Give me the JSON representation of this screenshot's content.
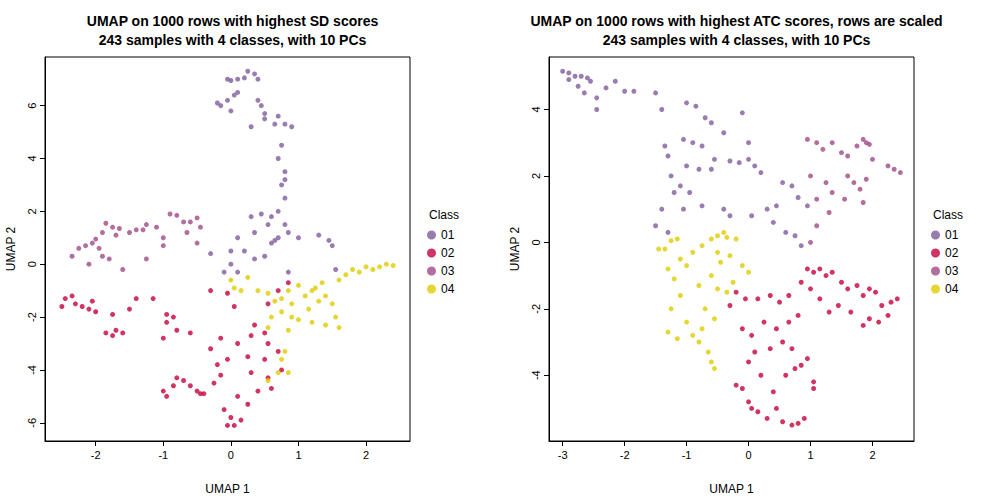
{
  "chart_data": [
    {
      "type": "scatter",
      "title": "UMAP on 1000 rows with highest SD scores",
      "subtitle": "243 samples with 4 classes, with 10 PCs",
      "x_label": "UMAP 1",
      "y_label": "UMAP 2",
      "legend_title": "Class",
      "legend": "right",
      "grid": false,
      "xlim": [
        -2.75,
        2.65
      ],
      "ylim": [
        -6.69,
        7.84
      ],
      "xticks": [
        -2,
        -1,
        0,
        1,
        2
      ],
      "yticks": [
        -6,
        -4,
        -2,
        0,
        2,
        4,
        6
      ],
      "series": [
        {
          "name": "01",
          "color": "#7F5C9E",
          "x": [
            -0.05,
            0.0,
            0.1,
            0.2,
            0.25,
            0.35,
            0.4,
            0.1,
            0.05,
            -0.05,
            -0.15,
            -0.2,
            0.0,
            0.4,
            0.45,
            0.5,
            0.3,
            0.5,
            0.65,
            0.7,
            0.8,
            0.9,
            0.75,
            0.7,
            0.8,
            0.8,
            0.75,
            0.8,
            0.7,
            0.6,
            0.45,
            0.3,
            0.55,
            0.35,
            0.8,
            0.7,
            0.85,
            0.6,
            1.0,
            1.3,
            1.45,
            1.5,
            0.1,
            0.2,
            -0.3,
            0.0,
            0.1,
            0.0,
            -0.1,
            0.35,
            0.5,
            0.65,
            1.55,
            0.85
          ],
          "values": [
            7.0,
            6.95,
            7.0,
            7.05,
            7.3,
            7.2,
            7.0,
            6.5,
            6.4,
            6.2,
            6.0,
            6.1,
            5.8,
            6.2,
            6.0,
            5.7,
            5.2,
            5.5,
            5.3,
            5.6,
            5.3,
            5.2,
            4.5,
            4.0,
            3.5,
            3.2,
            3.0,
            2.5,
            2.0,
            1.8,
            1.9,
            1.8,
            1.5,
            1.2,
            1.5,
            1.0,
            1.2,
            0.8,
            1.0,
            1.1,
            0.9,
            0.7,
            1.0,
            0.5,
            0.4,
            0.5,
            -0.3,
            0.0,
            -0.3,
            0.2,
            0.3,
            0.9,
            -0.2,
            -0.3
          ]
        },
        {
          "name": "02",
          "color": "#C5003B",
          "x": [
            -2.5,
            -2.45,
            -2.35,
            -2.3,
            -2.2,
            -2.1,
            -2.05,
            -2.0,
            -1.85,
            -1.75,
            -1.7,
            -1.6,
            -1.75,
            -1.5,
            -1.4,
            -1.15,
            -0.95,
            -0.85,
            -0.95,
            -0.8,
            -0.6,
            -1.0,
            -1.0,
            -0.95,
            -0.85,
            -0.8,
            -0.7,
            -0.6,
            -0.5,
            -0.4,
            -0.25,
            -0.15,
            -0.2,
            -0.05,
            -0.3,
            -0.15,
            0.1,
            0.25,
            -0.05,
            0.05,
            -0.3,
            0.35,
            0.5,
            0.55,
            0.7,
            0.5,
            0.3,
            0.1,
            -0.1,
            0.0,
            -0.05,
            0.05,
            0.15,
            0.25,
            0.4,
            0.55,
            0.6,
            0.75,
            0.55,
            0.7,
            0.85,
            -0.45,
            0.3
          ],
          "values": [
            -1.6,
            -1.3,
            -1.2,
            -1.5,
            -1.6,
            -1.7,
            -1.4,
            -1.8,
            -2.6,
            -2.7,
            -2.5,
            -2.6,
            -1.9,
            -1.7,
            -1.3,
            -1.3,
            -1.9,
            -2.0,
            -2.2,
            -2.5,
            -2.6,
            -2.8,
            -4.8,
            -5.0,
            -4.6,
            -4.3,
            -4.4,
            -4.6,
            -4.8,
            -4.9,
            -4.5,
            -4.2,
            -3.8,
            -3.6,
            -3.2,
            -2.8,
            -3.0,
            -3.5,
            -1.1,
            -1.6,
            -1.0,
            -2.3,
            -2.6,
            -3.0,
            -3.3,
            -3.6,
            -4.1,
            -5.0,
            -5.5,
            -5.8,
            -6.1,
            -6.1,
            -5.9,
            -5.3,
            -4.8,
            -4.3,
            -4.7,
            -4.0,
            -1.5,
            -1.0,
            -0.7,
            -4.9,
            -2.7
          ]
        },
        {
          "name": "03",
          "color": "#9F4A87",
          "x": [
            -2.35,
            -2.25,
            -2.15,
            -2.05,
            -2.0,
            -1.9,
            -1.85,
            -1.75,
            -1.65,
            -1.7,
            -1.5,
            -1.4,
            -1.3,
            -1.25,
            -1.1,
            -1.0,
            -0.9,
            -0.8,
            -0.7,
            -0.6,
            -0.5,
            -0.65,
            -0.5,
            -1.25,
            -1.9,
            -1.8,
            -1.6,
            -1.0,
            -2.1,
            -1.95,
            -0.45
          ],
          "values": [
            0.3,
            0.6,
            0.7,
            0.8,
            0.95,
            1.2,
            1.55,
            1.4,
            1.35,
            1.1,
            1.2,
            1.3,
            1.3,
            1.5,
            1.4,
            1.0,
            1.9,
            1.85,
            1.6,
            1.6,
            1.75,
            1.2,
            0.8,
            0.2,
            0.3,
            0.2,
            -0.2,
            0.7,
            0.0,
            0.6,
            1.4
          ]
        },
        {
          "name": "04",
          "color": "#DDCC00",
          "x": [
            0.0,
            0.05,
            0.15,
            0.25,
            0.4,
            0.55,
            0.65,
            0.75,
            0.85,
            0.9,
            1.0,
            1.1,
            1.15,
            1.25,
            1.3,
            1.4,
            1.5,
            1.55,
            1.6,
            1.7,
            1.8,
            1.9,
            2.0,
            2.1,
            2.2,
            2.3,
            2.4,
            1.2,
            1.4,
            1.6,
            1.0,
            0.85,
            0.9,
            0.75,
            0.6,
            0.55,
            0.8,
            0.75,
            0.7,
            0.85,
            0.55,
            1.2,
            1.35
          ],
          "values": [
            -0.6,
            -0.9,
            -1.0,
            -0.5,
            -1.0,
            -1.1,
            -1.4,
            -1.3,
            -1.0,
            -1.5,
            -0.8,
            -1.2,
            -1.7,
            -0.9,
            -1.4,
            -1.2,
            -1.5,
            -2.0,
            -0.6,
            -0.4,
            -0.2,
            -0.3,
            -0.1,
            -0.2,
            -0.1,
            0.0,
            -0.05,
            -2.2,
            -2.3,
            -2.4,
            -2.1,
            -2.5,
            -2.0,
            -1.8,
            -2.0,
            -2.4,
            -3.3,
            -3.6,
            -4.1,
            -4.1,
            -4.4,
            -1.0,
            -0.7
          ]
        }
      ]
    },
    {
      "type": "scatter",
      "title": "UMAP on 1000 rows with highest ATC scores, rows are scaled",
      "subtitle": "243 samples with 4 classes, with 10 PCs",
      "x_label": "UMAP 1",
      "y_label": "UMAP 2",
      "legend_title": "Class",
      "legend": "right",
      "grid": false,
      "xlim": [
        -3.22,
        2.67
      ],
      "ylim": [
        -5.98,
        5.58
      ],
      "xticks": [
        -3,
        -2,
        -1,
        0,
        1,
        2
      ],
      "yticks": [
        -4,
        -2,
        0,
        2,
        4
      ],
      "series": [
        {
          "name": "01",
          "color": "#7F5C9E",
          "x": [
            -3.0,
            -2.9,
            -2.8,
            -2.7,
            -2.6,
            -2.55,
            -2.9,
            -2.75,
            -2.65,
            -2.45,
            -2.45,
            -2.3,
            -2.15,
            -2.0,
            -1.85,
            -1.5,
            -1.4,
            -1.0,
            -0.85,
            -0.7,
            -0.6,
            -0.4,
            -1.35,
            -1.3,
            -1.05,
            -0.9,
            -0.75,
            -1.25,
            -1.2,
            -1.1,
            -0.95,
            -1.0,
            -0.8,
            -0.6,
            -0.55,
            -0.3,
            -0.15,
            0.0,
            0.1,
            -0.1,
            0.0,
            0.2,
            -1.4,
            -1.5,
            -1.3,
            -1.05,
            -0.75,
            -0.4,
            -0.3,
            0.05,
            0.3,
            0.4,
            0.45,
            0.55,
            0.7,
            0.8,
            0.95,
            0.6,
            0.75,
            0.85
          ],
          "values": [
            5.15,
            5.1,
            5.0,
            5.0,
            4.95,
            4.85,
            4.9,
            4.7,
            4.5,
            4.35,
            4.0,
            4.65,
            4.85,
            4.55,
            4.55,
            4.5,
            4.0,
            4.2,
            4.1,
            3.75,
            3.6,
            3.3,
            2.9,
            2.6,
            3.1,
            3.0,
            2.9,
            2.0,
            1.5,
            1.7,
            1.5,
            2.3,
            2.2,
            2.2,
            2.5,
            2.45,
            2.4,
            2.5,
            2.3,
            3.9,
            3.0,
            2.1,
            1.0,
            0.5,
            0.3,
            1.0,
            1.1,
            1.0,
            0.8,
            0.8,
            1.0,
            0.6,
            1.1,
            1.8,
            1.7,
            1.35,
            1.1,
            0.3,
            0.2,
            -0.1
          ]
        },
        {
          "name": "02",
          "color": "#C5003B",
          "x": [
            0.95,
            1.05,
            1.15,
            1.25,
            1.35,
            1.5,
            1.6,
            1.75,
            1.85,
            1.95,
            2.05,
            2.15,
            2.3,
            2.4,
            2.25,
            2.1,
            1.95,
            1.85,
            1.65,
            1.45,
            1.3,
            1.15,
            1.0,
            0.85,
            0.65,
            0.5,
            0.35,
            0.15,
            -0.05,
            -0.2,
            -0.3,
            -0.1,
            0.05,
            0.25,
            0.45,
            0.65,
            0.8,
            0.55,
            0.35,
            0.1,
            0.0,
            -0.2,
            -0.1,
            0.0,
            0.05,
            0.15,
            0.3,
            0.45,
            0.55,
            0.7,
            0.8,
            0.9,
            0.6,
            0.75,
            0.85,
            0.95,
            1.05,
            1.05,
            0.7,
            0.4,
            0.2
          ],
          "values": [
            -0.8,
            -0.9,
            -0.8,
            -1.0,
            -0.9,
            -1.2,
            -1.4,
            -1.3,
            -1.6,
            -1.4,
            -1.5,
            -1.9,
            -1.8,
            -1.7,
            -2.2,
            -2.4,
            -2.3,
            -2.5,
            -2.1,
            -1.9,
            -2.1,
            -1.7,
            -1.4,
            -1.2,
            -1.6,
            -1.8,
            -1.6,
            -1.7,
            -1.7,
            -1.5,
            -1.9,
            -2.6,
            -2.8,
            -2.4,
            -2.6,
            -2.4,
            -2.2,
            -3.0,
            -3.2,
            -3.3,
            -3.6,
            -4.3,
            -4.4,
            -4.8,
            -5.0,
            -5.1,
            -5.3,
            -5.0,
            -5.4,
            -5.5,
            -5.45,
            -5.3,
            -4.0,
            -3.8,
            -3.7,
            -3.5,
            -4.2,
            -4.4,
            -3.2,
            -4.5,
            -4.0
          ]
        },
        {
          "name": "03",
          "color": "#9F4A87",
          "x": [
            0.95,
            1.1,
            1.2,
            1.35,
            1.5,
            1.6,
            1.75,
            1.85,
            1.9,
            1.95,
            2.0,
            2.25,
            2.35,
            2.45,
            1.6,
            1.7,
            1.8,
            1.9,
            1.55,
            1.35,
            1.25,
            1.1,
            1.0,
            1.85,
            1.3,
            1.1,
            1.0
          ],
          "values": [
            3.1,
            3.0,
            2.8,
            3.0,
            2.7,
            2.6,
            2.9,
            3.1,
            3.0,
            2.95,
            2.5,
            2.3,
            2.2,
            2.1,
            2.0,
            1.8,
            1.6,
            1.9,
            1.3,
            1.5,
            1.8,
            1.3,
            2.0,
            1.2,
            0.9,
            0.5,
            0.0
          ]
        },
        {
          "name": "04",
          "color": "#DDCC00",
          "x": [
            -1.45,
            -1.35,
            -1.25,
            -1.15,
            -1.1,
            -1.3,
            -1.2,
            -1.0,
            -0.9,
            -0.75,
            -0.6,
            -0.5,
            -0.35,
            -0.2,
            -0.45,
            -0.3,
            -0.1,
            0.0,
            -0.6,
            -0.8,
            -0.5,
            -0.35,
            -0.25,
            -1.1,
            -1.25,
            -1.3,
            -1.15,
            -1.0,
            -0.9,
            -0.8,
            -0.75,
            -0.65,
            -0.6,
            -0.55,
            -0.7,
            -0.55,
            -0.4,
            -0.5
          ],
          "values": [
            -0.2,
            -0.2,
            0.05,
            0.1,
            -0.5,
            -0.8,
            -1.1,
            -0.7,
            -0.3,
            -0.1,
            0.1,
            0.2,
            0.15,
            0.1,
            -0.6,
            -0.4,
            -0.7,
            -0.9,
            -1.0,
            -1.3,
            -1.4,
            -1.5,
            -1.2,
            -1.6,
            -2.0,
            -2.7,
            -2.9,
            -2.4,
            -2.8,
            -3.0,
            -2.6,
            -3.3,
            -3.6,
            -3.8,
            -2.0,
            -2.3,
            0.3,
            -0.3
          ]
        }
      ]
    }
  ]
}
